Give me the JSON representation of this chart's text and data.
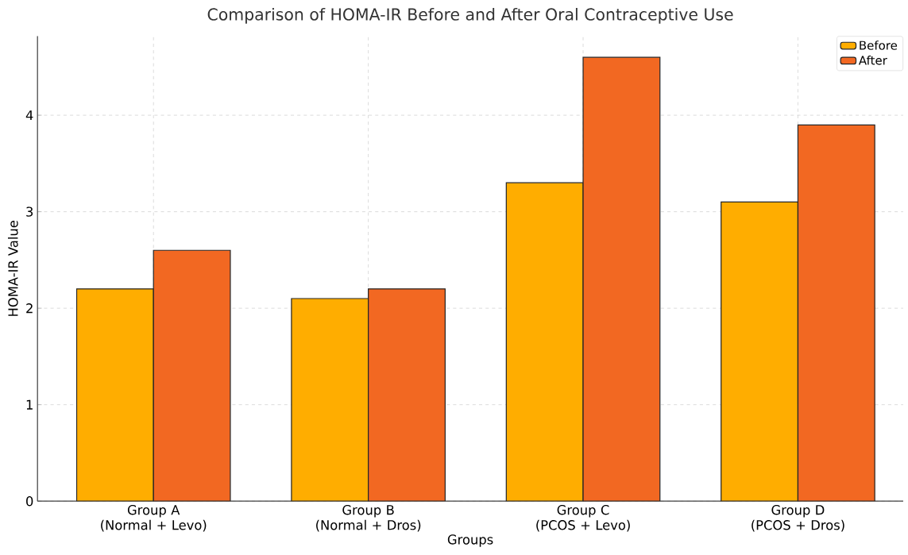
{
  "chart_data": {
    "type": "bar",
    "title": "Comparison of HOMA-IR Before and After Oral Contraceptive Use",
    "xlabel": "Groups",
    "ylabel": "HOMA-IR Value",
    "categories": [
      "Group A (Normal + Levo)",
      "Group B (Normal + Dros)",
      "Group C (PCOS + Levo)",
      "Group D (PCOS + Dros)"
    ],
    "series": [
      {
        "name": "Before",
        "color": "#ffad00",
        "values": [
          2.2,
          2.1,
          3.3,
          3.1
        ]
      },
      {
        "name": "After",
        "color": "#f26822",
        "values": [
          2.6,
          2.2,
          4.6,
          3.9
        ]
      }
    ],
    "ylim": [
      0,
      4.82
    ],
    "yticks": [
      0,
      1,
      2,
      3,
      4
    ],
    "grid": true,
    "legend": "top right"
  }
}
